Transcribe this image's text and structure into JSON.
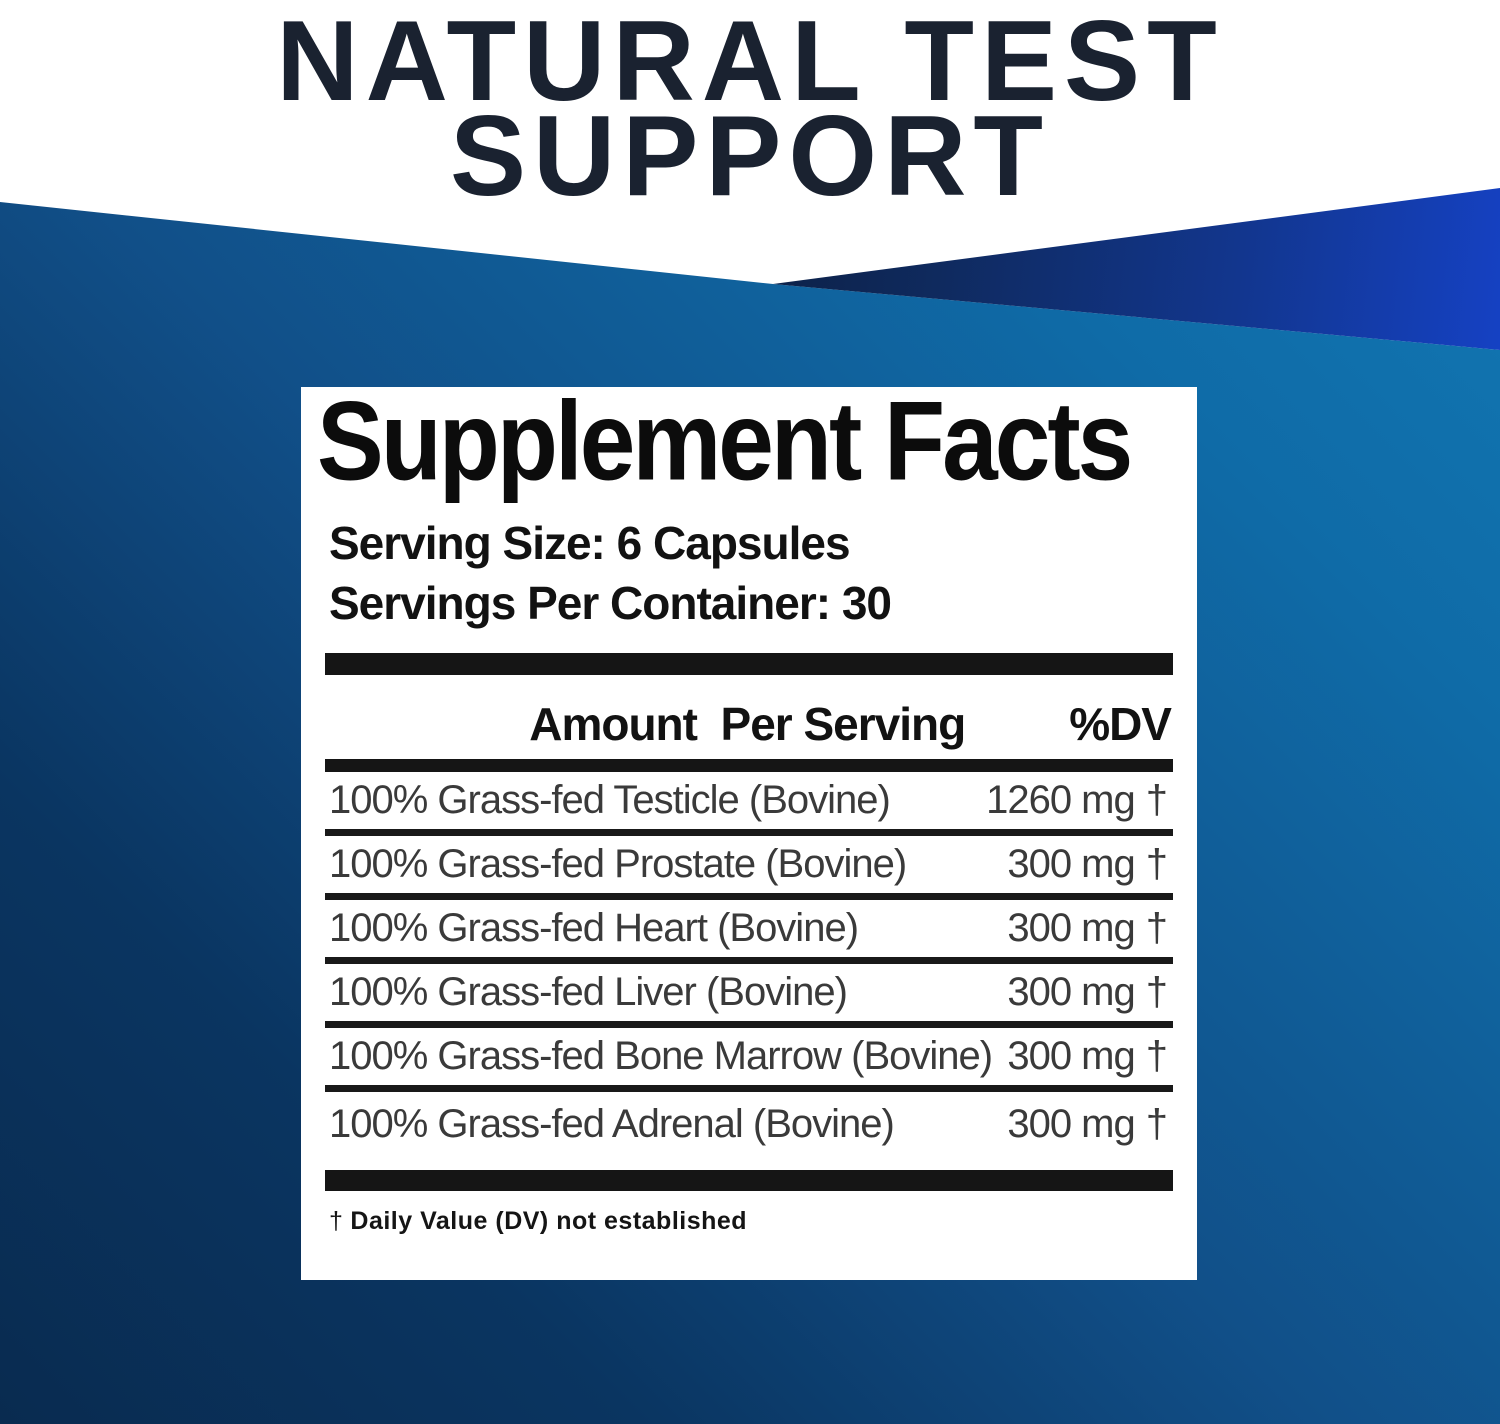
{
  "hero": {
    "title_line1": "NATURAL TEST",
    "title_line2": "SUPPORT"
  },
  "supplement_facts": {
    "title": "Supplement Facts",
    "serving_size": "Serving Size: 6 Capsules",
    "servings_per_container": "Servings Per Container: 30",
    "column_header": {
      "amount_per_serving": "Amount  Per Serving",
      "percent_dv": "%DV"
    },
    "ingredients": [
      {
        "name": "100% Grass-fed Testicle (Bovine)",
        "amount": "1260 mg",
        "dv": "†"
      },
      {
        "name": "100% Grass-fed Prostate (Bovine)",
        "amount": "300 mg",
        "dv": "†"
      },
      {
        "name": "100% Grass-fed Heart (Bovine)",
        "amount": "300 mg",
        "dv": "†"
      },
      {
        "name": "100% Grass-fed Liver (Bovine)",
        "amount": "300 mg",
        "dv": "†"
      },
      {
        "name": "100% Grass-fed Bone Marrow (Bovine)",
        "amount": "300 mg",
        "dv": "†"
      },
      {
        "name": "100% Grass-fed Adrenal (Bovine)",
        "amount": "300 mg",
        "dv": "†"
      }
    ],
    "footnote": {
      "dagger": "†",
      "text": "Daily Value (DV) not established"
    }
  },
  "colors": {
    "hero_text": "#1a2230",
    "background_gradient_light": "#137ab6",
    "background_gradient_mid": "#114f88",
    "background_gradient_dark": "#092b50",
    "wedge_gradient_dark": "#0c2045",
    "wedge_gradient_bright": "#1644d0",
    "panel_background": "#ffffff",
    "table_bar": "#151515",
    "ingredient_text": "#3a3a3a"
  }
}
